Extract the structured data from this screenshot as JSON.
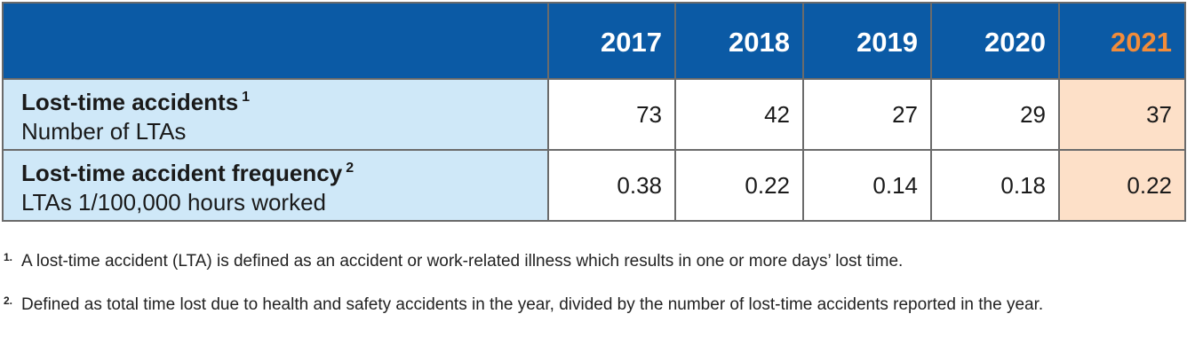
{
  "table": {
    "years": [
      "2017",
      "2018",
      "2019",
      "2020",
      "2021"
    ],
    "rows": [
      {
        "title": "Lost-time accidents",
        "note_ref": "1",
        "subtitle": "Number of LTAs",
        "values": [
          "73",
          "42",
          "27",
          "29",
          "37"
        ]
      },
      {
        "title": "Lost-time accident frequency",
        "note_ref": "2",
        "subtitle": "LTAs 1/100,000 hours worked",
        "values": [
          "0.38",
          "0.22",
          "0.14",
          "0.18",
          "0.22"
        ]
      }
    ]
  },
  "footnotes": [
    {
      "num": "1.",
      "text": "A lost-time accident (LTA) is defined as an accident or work-related illness which results in one or more days’ lost time."
    },
    {
      "num": "2.",
      "text": "Defined as total time lost due to health and safety accidents in the year, divided by the number of lost-time accidents reported in the year."
    }
  ],
  "colors": {
    "header_bg": "#0b5aa5",
    "label_bg": "#cfe8f8",
    "highlight_bg": "#fde0c8",
    "highlight_text": "#f28c3a"
  }
}
